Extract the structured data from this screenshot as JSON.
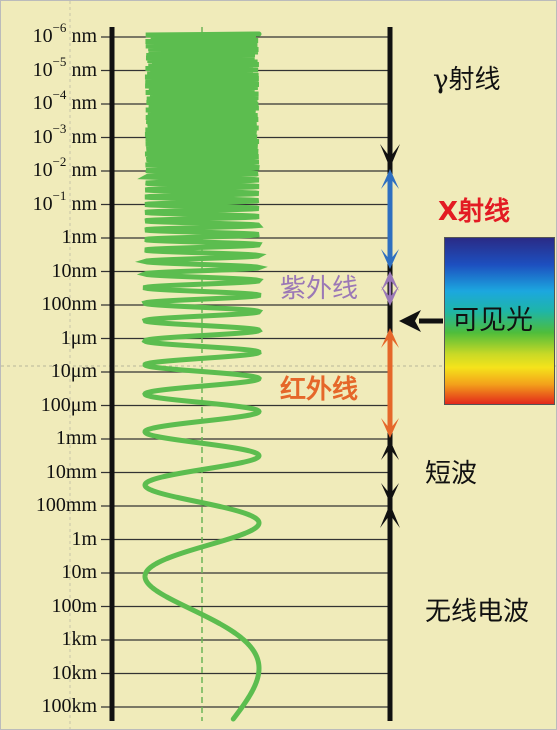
{
  "wavelengths": [
    {
      "base": "10",
      "exp": "-6",
      "unit": "nm"
    },
    {
      "base": "10",
      "exp": "-5",
      "unit": "nm"
    },
    {
      "base": "10",
      "exp": "-4",
      "unit": "nm"
    },
    {
      "base": "10",
      "exp": "-3",
      "unit": "nm"
    },
    {
      "base": "10",
      "exp": "-2",
      "unit": "nm"
    },
    {
      "base": "10",
      "exp": "-1",
      "unit": "nm"
    },
    {
      "base": "1nm",
      "exp": "",
      "unit": ""
    },
    {
      "base": "10nm",
      "exp": "",
      "unit": ""
    },
    {
      "base": "100nm",
      "exp": "",
      "unit": ""
    },
    {
      "base": "1μm",
      "exp": "",
      "unit": ""
    },
    {
      "base": "10μm",
      "exp": "",
      "unit": ""
    },
    {
      "base": "100μm",
      "exp": "",
      "unit": ""
    },
    {
      "base": "1mm",
      "exp": "",
      "unit": ""
    },
    {
      "base": "10mm",
      "exp": "",
      "unit": ""
    },
    {
      "base": "100mm",
      "exp": "",
      "unit": ""
    },
    {
      "base": "1m",
      "exp": "",
      "unit": ""
    },
    {
      "base": "10m",
      "exp": "",
      "unit": ""
    },
    {
      "base": "100m",
      "exp": "",
      "unit": ""
    },
    {
      "base": "1km",
      "exp": "",
      "unit": ""
    },
    {
      "base": "10km",
      "exp": "",
      "unit": ""
    },
    {
      "base": "100km",
      "exp": "",
      "unit": ""
    }
  ],
  "bands": {
    "gamma": "γ射线",
    "xray": "X射线",
    "uv": "紫外线",
    "visible": "可见光",
    "ir": "红外线",
    "shortwave": "短波",
    "radio": "无线电波"
  },
  "colors": {
    "background": "#f0ebba",
    "wave": "#5cbd4f",
    "xray": "#e31b23",
    "xray_arrow": "#2e6fc0",
    "uv": "#9b78b6",
    "ir": "#e5672a",
    "black": "#111111",
    "dashed": "#6db557"
  }
}
